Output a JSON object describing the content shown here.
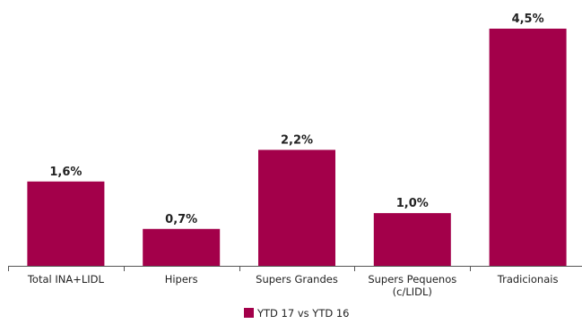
{
  "chart_data": {
    "type": "bar",
    "categories": [
      [
        "Total INA+LIDL"
      ],
      [
        "Hipers"
      ],
      [
        "Supers Grandes"
      ],
      [
        "Supers Pequenos",
        "(c/LIDL)"
      ],
      [
        "Tradicionais"
      ]
    ],
    "series": [
      {
        "name": "YTD 17 vs YTD 16",
        "values": [
          1.6,
          0.7,
          2.2,
          1.0,
          4.5
        ],
        "labels": [
          "1,6%",
          "0,7%",
          "2,2%",
          "1,0%",
          "4,5%"
        ],
        "color": "#a3004a"
      }
    ],
    "ylim": [
      0,
      4.5
    ],
    "grid": false,
    "legend": "bottom-center"
  }
}
